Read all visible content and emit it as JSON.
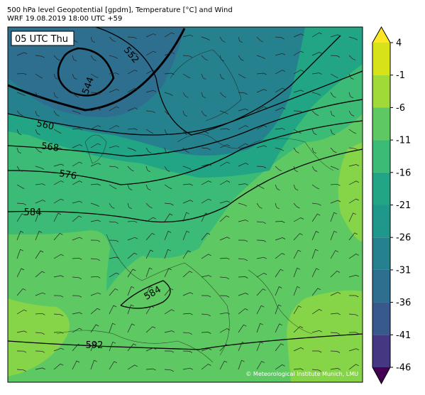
{
  "header": {
    "title": "500 hPa level Geopotential [gpdm], Temperature [°C] and Wind",
    "subtitle": "WRF 19.08.2019 18:00 UTC +59"
  },
  "time_label": "05 UTC Thu",
  "contour_labels": [
    "552",
    "544",
    "560",
    "568",
    "576",
    "584",
    "584",
    "592"
  ],
  "credit": "© Meteorological Institute Munich, LMU",
  "colorbar": {
    "ticks": [
      4,
      -1,
      -6,
      -11,
      -16,
      -21,
      -26,
      -31,
      -36,
      -41,
      -46
    ],
    "colors": [
      "#d8e219",
      "#a0da39",
      "#5ec962",
      "#3bbb75",
      "#21a585",
      "#1f978b",
      "#26818e",
      "#2e6e8e",
      "#38598c",
      "#453781",
      "#481769"
    ],
    "over_color": "#fde725",
    "under_color": "#440154"
  }
}
